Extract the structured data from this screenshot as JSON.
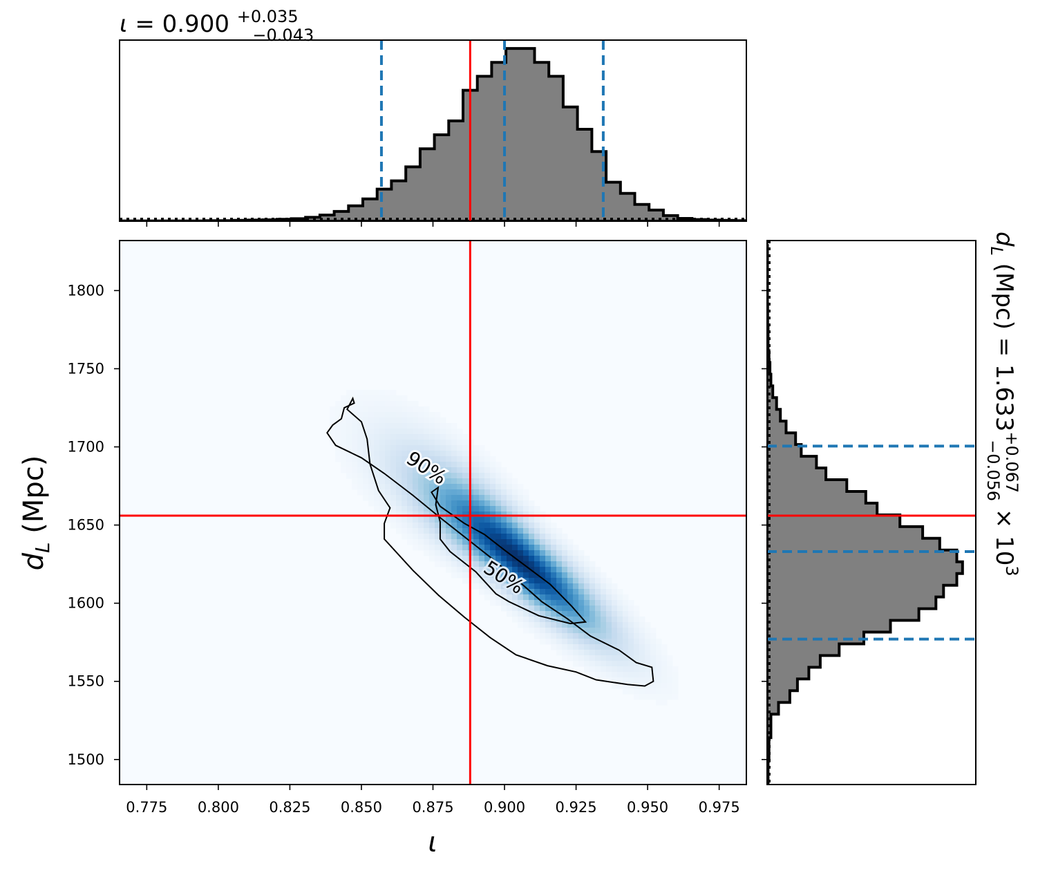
{
  "chart_data": {
    "type": "heatmap",
    "title": "",
    "marginal_x_title": {
      "symbol": "ι",
      "eq": " = 0.900",
      "sup": "+0.035",
      "sub": "−0.043"
    },
    "marginal_y_title": {
      "symbol": "d",
      "symbol_sub": "L",
      "eq": " (Mpc) = 1.633",
      "sup": "+0.067",
      "sub": "−0.056",
      "scale": " × 10",
      "scale_exp": "3"
    },
    "xlabel": "ι",
    "ylabel": {
      "symbol": "d",
      "symbol_sub": "L",
      "unit": " (Mpc)"
    },
    "xlim": [
      0.7655,
      0.9845
    ],
    "ylim": [
      1484,
      1832
    ],
    "xticks": [
      0.775,
      0.8,
      0.825,
      0.85,
      0.875,
      0.9,
      0.925,
      0.95,
      0.975
    ],
    "xtick_labels": [
      "0.775",
      "0.800",
      "0.825",
      "0.850",
      "0.875",
      "0.900",
      "0.925",
      "0.950",
      "0.975"
    ],
    "yticks": [
      1500,
      1550,
      1600,
      1650,
      1700,
      1750,
      1800
    ],
    "ytick_labels": [
      "1500",
      "1550",
      "1600",
      "1650",
      "1700",
      "1750",
      "1800"
    ],
    "truth": {
      "iota": 0.888,
      "dL": 1656
    },
    "iota_quantiles": [
      0.857,
      0.9,
      0.9345
    ],
    "dL_quantiles": [
      1577,
      1633,
      1700.5
    ],
    "contour_labels": [
      "90%",
      "50%"
    ],
    "contour_levels": [
      0.9,
      0.5
    ],
    "colormap": "Blues",
    "colors": {
      "truth": "#ff0000",
      "quantile": "#1f77b4",
      "histogram_fill": "#808080",
      "histogram_edge": "#000000"
    },
    "marginal_iota_hist": {
      "bin_width": 0.005,
      "bin_starts": [
        0.7655,
        0.7705,
        0.7755,
        0.7805,
        0.7855,
        0.7905,
        0.7955,
        0.8005,
        0.8055,
        0.8105,
        0.8155,
        0.8205,
        0.8255,
        0.8305,
        0.8355,
        0.8405,
        0.8455,
        0.8505,
        0.8555,
        0.8605,
        0.8655,
        0.8705,
        0.8755,
        0.8805,
        0.8855,
        0.8905,
        0.8955,
        0.9005,
        0.9055,
        0.9105,
        0.9155,
        0.9205,
        0.9255,
        0.9305,
        0.9355,
        0.9405,
        0.9455,
        0.9505,
        0.9555,
        0.9605,
        0.9655,
        0.9705,
        0.9755,
        0.9805
      ],
      "density": [
        0.1,
        0.1,
        0.1,
        0.1,
        0.1,
        0.1,
        0.2,
        0.2,
        0.3,
        0.4,
        0.5,
        0.7,
        0.9,
        1.4,
        2.2,
        3.5,
        5.5,
        8.0,
        11.5,
        14.5,
        19.5,
        26,
        31,
        36,
        47,
        52,
        57,
        62,
        62,
        57,
        52,
        41,
        33,
        25,
        14,
        10,
        6,
        4,
        2,
        1,
        0.6,
        0.4,
        0.3,
        0.2
      ]
    },
    "marginal_dL_hist": {
      "bin_width": 7.5,
      "bin_starts": [
        1484,
        1491.5,
        1499,
        1506.5,
        1514,
        1521.5,
        1529,
        1536.5,
        1544,
        1551.5,
        1559,
        1566.5,
        1574,
        1581.5,
        1589,
        1596.5,
        1604,
        1611.5,
        1619,
        1626.5,
        1634,
        1641.5,
        1649,
        1656.5,
        1664,
        1671.5,
        1679,
        1686.5,
        1694,
        1701.5,
        1709,
        1716.5,
        1724,
        1731.5,
        1739,
        1746.5,
        1754,
        1761.5,
        1769,
        1776.5,
        1784,
        1791.5,
        1799,
        1806.5,
        1814,
        1821.5
      ],
      "density": [
        0.5,
        0.5,
        1,
        1,
        2,
        2,
        6,
        12,
        16,
        22,
        28,
        38,
        51,
        65,
        80,
        89,
        93,
        100,
        103,
        100,
        91,
        82,
        70,
        58,
        52,
        42,
        31,
        26,
        18,
        15,
        10,
        7,
        5,
        3,
        2,
        1.5,
        1,
        0.5,
        0.5,
        0.3,
        0.3,
        0.2,
        0.2,
        0.2,
        0.2,
        0.2
      ]
    },
    "density_2d": {
      "ridge_center": {
        "iota": 0.905,
        "dL": 1628
      },
      "ridge_direction": [
        0.0625,
        -100.1
      ],
      "samples_note": ""
    }
  }
}
